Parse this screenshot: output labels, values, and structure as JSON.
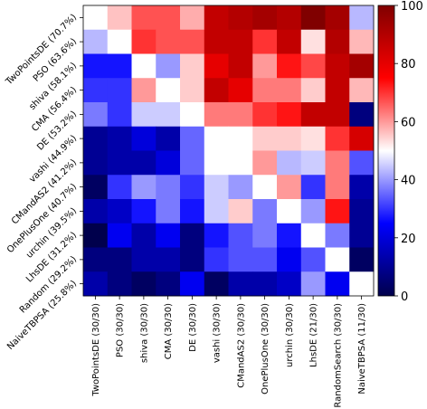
{
  "chart_data": {
    "type": "heatmap",
    "rows": [
      "TwoPointsDE (70.7%)",
      "PSO (63.6%)",
      "shiva (58.1%)",
      "CMA (56.4%)",
      "DE (53.2%)",
      "vashi (44.9%)",
      "CMandAS2 (41.2%)",
      "OnePlusOne (40.7%)",
      "urchin (39.5%)",
      "LhsDE (31.2%)",
      "Random (29.2%)",
      "NaiveTBPSA (25.8%)"
    ],
    "columns": [
      "TwoPointsDE (30/30)",
      "PSO (30/30)",
      "shiva (30/30)",
      "CMA (30/30)",
      "DE (30/30)",
      "vashi (30/30)",
      "CMandAS2 (30/30)",
      "OnePlusOne (30/30)",
      "urchin (30/30)",
      "LhsDE (21/30)",
      "RandomSearch (30/30)",
      "NaiveTBPSA (11/30)"
    ],
    "values": [
      [
        50,
        56,
        67,
        67,
        58,
        87,
        90,
        93,
        90,
        100,
        93,
        43
      ],
      [
        43,
        50,
        70,
        67,
        67,
        87,
        87,
        70,
        87,
        53,
        90,
        57
      ],
      [
        27,
        27,
        50,
        40,
        55,
        80,
        87,
        60,
        73,
        68,
        87,
        93
      ],
      [
        30,
        30,
        60,
        50,
        55,
        87,
        80,
        63,
        63,
        55,
        87,
        57
      ],
      [
        37,
        30,
        45,
        45,
        50,
        63,
        63,
        70,
        73,
        87,
        87,
        7
      ],
      [
        10,
        13,
        20,
        13,
        35,
        50,
        50,
        55,
        55,
        53,
        70,
        83
      ],
      [
        10,
        13,
        13,
        20,
        35,
        50,
        50,
        60,
        43,
        45,
        63,
        33
      ],
      [
        3,
        30,
        40,
        37,
        30,
        45,
        40,
        50,
        60,
        30,
        63,
        13
      ],
      [
        13,
        17,
        27,
        37,
        27,
        45,
        55,
        37,
        50,
        40,
        73,
        10
      ],
      [
        0,
        23,
        13,
        23,
        7,
        27,
        33,
        37,
        27,
        50,
        37,
        10
      ],
      [
        7,
        7,
        13,
        13,
        7,
        30,
        33,
        33,
        23,
        33,
        50,
        3
      ],
      [
        13,
        7,
        3,
        7,
        23,
        3,
        13,
        13,
        17,
        40,
        23,
        50
      ]
    ],
    "colorbar": {
      "min": 0,
      "max": 100,
      "ticks": [
        0,
        20,
        40,
        60,
        80,
        100
      ],
      "colormap": "seismic"
    }
  }
}
